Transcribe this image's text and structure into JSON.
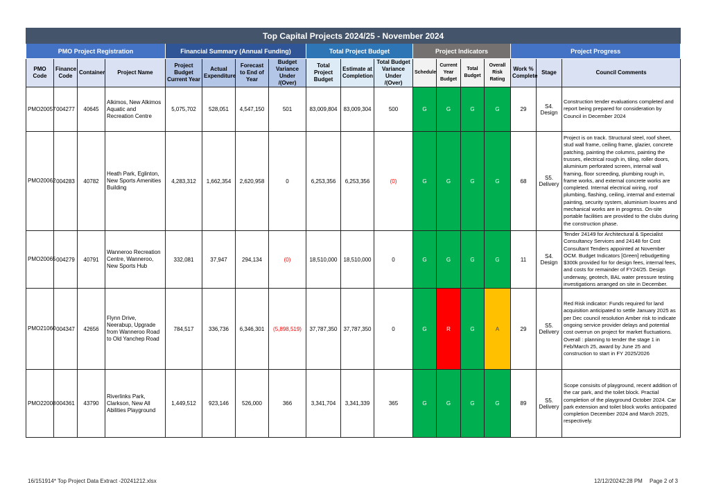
{
  "title": "Top Capital Projects 2024/25 - November 2024",
  "groups": {
    "registration": "PMO Project Registration",
    "financial": "Financial Summary (Annual Funding)",
    "total_budget": "Total Project Budget",
    "indicators": "Project Indicators",
    "progress": "Project Progress"
  },
  "columns": [
    "PMO Code",
    "Finance Code",
    "Container",
    "Project Name",
    "Project Budget Current Year",
    "Actual Expenditure",
    "Forecast to End of Year",
    "Budget Variance Under /(Over)",
    "Total Project Budget",
    "Estimate at Completion",
    "Total Budget Variance Under /(Over)",
    "Schedule",
    "Current Year Budget",
    "Total Budget",
    "Overall Risk Rating",
    "Work % Complete",
    "Stage",
    "Council Comments"
  ],
  "indicator_colors": {
    "G": "#00b050",
    "R": "#ff0000",
    "A": "#ffc000"
  },
  "rows": [
    {
      "pmo": "PMO20057",
      "finance": "004277",
      "container": "40645",
      "name": "Alkimos, New Alkimos Aquatic and Recreation Centre",
      "budget_cy": "5,075,702",
      "actual": "528,051",
      "forecast": "4,547,150",
      "variance": "501",
      "total_budget": "83,009,804",
      "eac": "83,009,304",
      "total_variance": "500",
      "schedule": "G",
      "cy_budget": "G",
      "tot_budget": "G",
      "risk": "G",
      "work": "29",
      "stage": "S4. Design",
      "comments": "Construction tender evaluations completed and report being prepared for consideration by Council in December 2024"
    },
    {
      "pmo": "PMO20062",
      "finance": "004283",
      "container": "40782",
      "name": "Heath Park, Eglinton, New Sports Amenities Building",
      "budget_cy": "4,283,312",
      "actual": "1,662,354",
      "forecast": "2,620,958",
      "variance": "0",
      "total_budget": "6,253,356",
      "eac": "6,253,356",
      "total_variance": "(0)",
      "schedule": "G",
      "cy_budget": "G",
      "tot_budget": "G",
      "risk": "G",
      "work": "68",
      "stage": "S5. Delivery",
      "comments": "Project is on track. Structural steel, roof sheet, stud wall frame, ceiling frame, glazier, concrete patching, painting the columns, painting the trusses, electrical rough in, tiling, roller doors, aluminium perforated screen, internal wall framing, floor screeding, plumbing rough in, frame works, and external concrete works are completed. Internal electrical wiring, roof plumbing, flashing, ceiling, internal and external painting, security system, aluminium louvres and mechanical works are in progress. On-site portable facilities are provided to the clubs during the construction phase."
    },
    {
      "pmo": "PMO20065",
      "finance": "004279",
      "container": "40791",
      "name": "Wanneroo Recreation Centre, Wanneroo, New Sports Hub",
      "budget_cy": "332,081",
      "actual": "37,947",
      "forecast": "294,134",
      "variance": "(0)",
      "total_budget": "18,510,000",
      "eac": "18,510,000",
      "total_variance": "0",
      "schedule": "G",
      "cy_budget": "G",
      "tot_budget": "G",
      "risk": "G",
      "work": "11",
      "stage": "S4. Design",
      "comments": "Tender 24149 for Architectural & Specialist Consultancy Services and 24148 for Cost Consultant Tenders appointed at November OCM. Budget Indicators [Green] rebudgetting $300k provided for for design fees, internal fees, and costs for remainder of FY24/25. Design underway, geotech, BAL water pressure testing investigations arranged on site in December."
    },
    {
      "pmo": "PMO21060",
      "finance": "004347",
      "container": "42656",
      "name": "Flynn Drive, Neerabup, Upgrade from Wanneroo Road to Old Yanchep Road",
      "budget_cy": "784,517",
      "actual": "336,736",
      "forecast": "6,346,301",
      "variance": "(5,898,519)",
      "total_budget": "37,787,350",
      "eac": "37,787,350",
      "total_variance": "0",
      "schedule": "G",
      "cy_budget": "R",
      "tot_budget": "G",
      "risk": "A",
      "work": "29",
      "stage": "S5. Delivery",
      "comments": "Red Risk indicator: Funds required for land acquisition anticipated to settle January 2025 as per Dec council resolution Amber risk to indicate ongoing service provider delays and potential cost overrun on project for market fluctuations. Overall : planning to tender the stage 1 in Feb/March 25, award by June 25 and construction to start in FY 2025/2026"
    },
    {
      "pmo": "PMO22008",
      "finance": "004361",
      "container": "43790",
      "name": "Riverlinks Park, Clarkson, New All Abilities Playground",
      "budget_cy": "1,449,512",
      "actual": "923,146",
      "forecast": "526,000",
      "variance": "366",
      "total_budget": "3,341,704",
      "eac": "3,341,339",
      "total_variance": "365",
      "schedule": "G",
      "cy_budget": "G",
      "tot_budget": "G",
      "risk": "G",
      "work": "89",
      "stage": "S5. Delivery",
      "comments": "Scope consisits of playground, recent addition of the car park, and the toilet block. Practial completion of the playground October 2024. Car park extension and toilet block works anticipated completion December 2024 and March 2025, respectively."
    }
  ],
  "footer": {
    "file": "16/151914*  Top Project Data Extract -20241212.xlsx",
    "timestamp": "12/12/20242:28 PM",
    "page": "Page 2 of 3"
  }
}
